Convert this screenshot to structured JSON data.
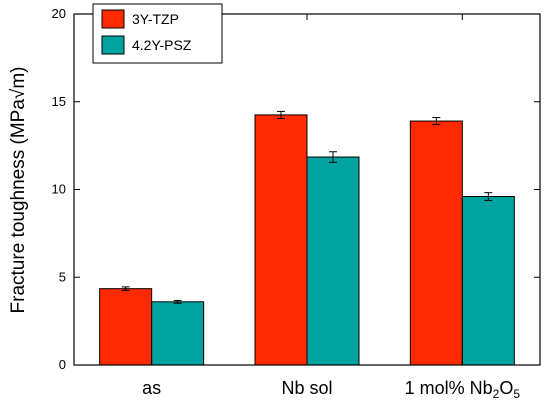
{
  "chart_data": {
    "type": "bar",
    "categories": [
      "as",
      "Nb sol",
      "1 mol% Nb2O5"
    ],
    "category_labels": [
      {
        "parts": [
          {
            "text": "as",
            "sub": false
          }
        ]
      },
      {
        "parts": [
          {
            "text": "Nb sol",
            "sub": false
          }
        ]
      },
      {
        "parts": [
          {
            "text": "1 mol% Nb",
            "sub": false
          },
          {
            "text": "2",
            "sub": true
          },
          {
            "text": "O",
            "sub": false
          },
          {
            "text": "5",
            "sub": true
          }
        ]
      }
    ],
    "series": [
      {
        "name": "3Y-TZP",
        "color": "#ff2a00",
        "values": [
          4.35,
          14.25,
          13.9
        ],
        "errors": [
          0.1,
          0.2,
          0.2
        ]
      },
      {
        "name": "4.2Y-PSZ",
        "color": "#00a3a0",
        "values": [
          3.6,
          11.85,
          9.6
        ],
        "errors": [
          0.08,
          0.3,
          0.22
        ]
      }
    ],
    "ylabel": "Fracture toughness  (MPa√m)",
    "xlabel": "",
    "ylim": [
      0,
      20
    ],
    "yticks": [
      0,
      5,
      10,
      15,
      20
    ],
    "grid": false,
    "legend": "top-left"
  }
}
